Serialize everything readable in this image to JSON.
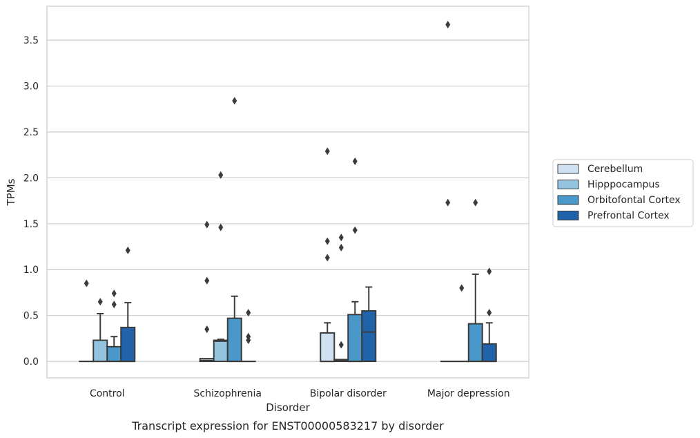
{
  "chart_data": {
    "type": "box",
    "xlabel": "Disorder",
    "ylabel": "TPMs",
    "caption": "Transcript expression for ENST00000583217 by disorder",
    "ylim": [
      -0.18,
      3.87
    ],
    "yticks": [
      "0.0",
      "0.5",
      "1.0",
      "1.5",
      "2.0",
      "2.5",
      "3.0",
      "3.5"
    ],
    "ytick_values": [
      0,
      0.5,
      1.0,
      1.5,
      2.0,
      2.5,
      3.0,
      3.5
    ],
    "grid": "horizontal",
    "legend_position": "right",
    "categories": [
      "Control",
      "Schizophrenia",
      "Bipolar disorder",
      "Major depression"
    ],
    "series": [
      {
        "name": "Cerebellum",
        "color": "#d0e1f2",
        "boxes": [
          {
            "q1": 0,
            "median": 0,
            "q3": 0,
            "whisker_low": 0,
            "whisker_high": 0,
            "outliers": [
              0.85
            ]
          },
          {
            "q1": 0,
            "median": 0.01,
            "q3": 0.03,
            "whisker_low": 0,
            "whisker_high": 0.03,
            "outliers": [
              0.35,
              0.88,
              1.49
            ]
          },
          {
            "q1": 0,
            "median": 0,
            "q3": 0.31,
            "whisker_low": 0,
            "whisker_high": 0.42,
            "outliers": [
              1.13,
              1.31,
              2.29
            ]
          },
          {
            "q1": 0,
            "median": 0,
            "q3": 0,
            "whisker_low": 0,
            "whisker_high": 0,
            "outliers": [
              1.73,
              3.67
            ]
          }
        ]
      },
      {
        "name": "Hipppocampus",
        "color": "#94c4df",
        "boxes": [
          {
            "q1": 0,
            "median": 0,
            "q3": 0.23,
            "whisker_low": 0,
            "whisker_high": 0.52,
            "outliers": [
              0.65
            ]
          },
          {
            "q1": 0,
            "median": 0.22,
            "q3": 0.23,
            "whisker_low": 0,
            "whisker_high": 0.24,
            "outliers": [
              1.46,
              2.03
            ]
          },
          {
            "q1": 0,
            "median": 0.01,
            "q3": 0.02,
            "whisker_low": 0,
            "whisker_high": 0.02,
            "outliers": [
              0.18,
              1.24,
              1.35
            ]
          },
          {
            "q1": 0,
            "median": 0,
            "q3": 0,
            "whisker_low": 0,
            "whisker_high": 0,
            "outliers": [
              0.8
            ]
          }
        ]
      },
      {
        "name": "Orbitofontal Cortex",
        "color": "#4a98c9",
        "boxes": [
          {
            "q1": 0,
            "median": 0,
            "q3": 0.16,
            "whisker_low": 0,
            "whisker_high": 0.27,
            "outliers": [
              0.62,
              0.74
            ]
          },
          {
            "q1": 0,
            "median": 0,
            "q3": 0.47,
            "whisker_low": 0,
            "whisker_high": 0.71,
            "outliers": [
              2.84
            ]
          },
          {
            "q1": 0,
            "median": 0,
            "q3": 0.51,
            "whisker_low": 0,
            "whisker_high": 0.65,
            "outliers": [
              1.43,
              2.18
            ]
          },
          {
            "q1": 0,
            "median": 0,
            "q3": 0.41,
            "whisker_low": 0,
            "whisker_high": 0.95,
            "outliers": [
              1.73
            ]
          }
        ]
      },
      {
        "name": "Prefrontal Cortex",
        "color": "#2163aa",
        "boxes": [
          {
            "q1": 0,
            "median": 0,
            "q3": 0.37,
            "whisker_low": 0,
            "whisker_high": 0.64,
            "outliers": [
              1.21
            ]
          },
          {
            "q1": 0,
            "median": 0,
            "q3": 0,
            "whisker_low": 0,
            "whisker_high": 0,
            "outliers": [
              0.23,
              0.27,
              0.53
            ]
          },
          {
            "q1": 0,
            "median": 0.32,
            "q3": 0.55,
            "whisker_low": 0,
            "whisker_high": 0.81,
            "outliers": []
          },
          {
            "q1": 0,
            "median": 0,
            "q3": 0.19,
            "whisker_low": 0,
            "whisker_high": 0.42,
            "outliers": [
              0.53,
              0.98
            ]
          }
        ]
      }
    ]
  }
}
